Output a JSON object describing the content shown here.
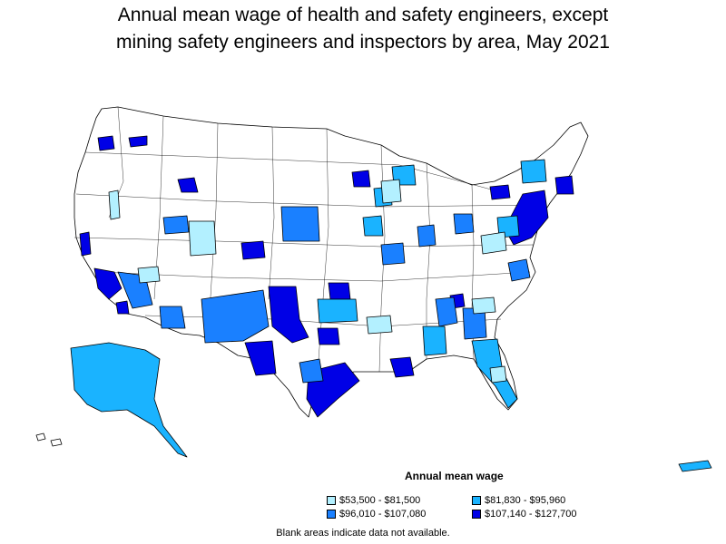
{
  "title": {
    "line1": "Annual mean wage of health and safety engineers, except",
    "line2": "mining safety engineers and inspectors by area, May 2021"
  },
  "legend": {
    "title": "Annual mean wage",
    "items": [
      {
        "label": "$53,500 - $81,500",
        "color": "#b3f0ff"
      },
      {
        "label": "$81,830 - $95,960",
        "color": "#1ab3ff"
      },
      {
        "label": "$96,010 - $107,080",
        "color": "#1a80ff"
      },
      {
        "label": "$107,140 - $127,700",
        "color": "#0000e6"
      }
    ]
  },
  "footnote": "Blank areas indicate data not available.",
  "colors": {
    "blank": "#ffffff",
    "border": "#000000"
  }
}
